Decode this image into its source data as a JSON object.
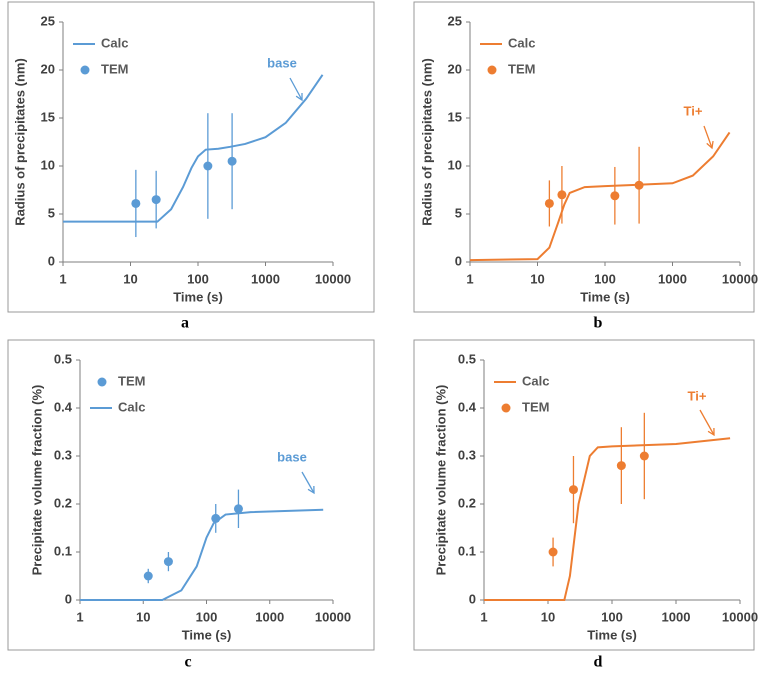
{
  "chart_data": [
    {
      "type": "line",
      "label": "a",
      "xlabel": "Time (s)",
      "ylabel": "Radius of precipitates (nm)",
      "xscale": "log",
      "xlim": [
        1,
        10000
      ],
      "xticks": [
        1,
        10,
        100,
        1000,
        10000
      ],
      "ylim": [
        0,
        25
      ],
      "yticks": [
        0,
        5,
        10,
        15,
        20,
        25
      ],
      "annotation": "base",
      "legend": "upper left",
      "series": [
        {
          "name": "Calc",
          "type": "line",
          "color": "#5b9bd5",
          "x": [
            1,
            10,
            25,
            40,
            60,
            80,
            100,
            130,
            200,
            300,
            500,
            1000,
            2000,
            4000,
            7000
          ],
          "values": [
            4.2,
            4.2,
            4.2,
            5.5,
            7.8,
            9.8,
            11,
            11.7,
            11.8,
            12,
            12.3,
            13,
            14.5,
            17,
            19.5
          ]
        },
        {
          "name": "TEM",
          "type": "scatter",
          "color": "#5b9bd5",
          "x": [
            12,
            24,
            140,
            320
          ],
          "values": [
            6.1,
            6.5,
            10,
            10.5
          ],
          "errors": [
            3.5,
            3,
            5.5,
            5
          ]
        }
      ]
    },
    {
      "type": "line",
      "label": "b",
      "xlabel": "Time (s)",
      "ylabel": "Radius of precipitates (nm)",
      "xscale": "log",
      "xlim": [
        1,
        10000
      ],
      "xticks": [
        1,
        10,
        100,
        1000,
        10000
      ],
      "ylim": [
        0,
        25
      ],
      "yticks": [
        0,
        5,
        10,
        15,
        20,
        25
      ],
      "annotation": "Ti+",
      "legend": "upper left",
      "series": [
        {
          "name": "Calc",
          "type": "line",
          "color": "#ed7d31",
          "x": [
            1,
            10,
            15,
            20,
            25,
            30,
            50,
            100,
            1000,
            2000,
            4000,
            7000
          ],
          "values": [
            0.2,
            0.3,
            1.5,
            4,
            6,
            7.2,
            7.8,
            7.9,
            8.2,
            9,
            11,
            13.5
          ]
        },
        {
          "name": "TEM",
          "type": "scatter",
          "color": "#ed7d31",
          "x": [
            15,
            23,
            140,
            320
          ],
          "values": [
            6.1,
            7,
            6.9,
            8
          ],
          "errors": [
            2.4,
            3,
            3,
            4
          ]
        }
      ]
    },
    {
      "type": "line",
      "label": "c",
      "xlabel": "Time (s)",
      "ylabel": "Precipitate volume fraction (%)",
      "xscale": "log",
      "xlim": [
        1,
        10000
      ],
      "xticks": [
        1,
        10,
        100,
        1000,
        10000
      ],
      "ylim": [
        0,
        0.5
      ],
      "yticks": [
        0,
        0.1,
        0.2,
        0.3,
        0.4,
        0.5
      ],
      "annotation": "base",
      "legend": "upper left",
      "series": [
        {
          "name": "TEM",
          "type": "scatter",
          "color": "#5b9bd5",
          "x": [
            12,
            25,
            140,
            320
          ],
          "values": [
            0.05,
            0.08,
            0.17,
            0.19
          ],
          "errors": [
            0.015,
            0.02,
            0.03,
            0.04
          ]
        },
        {
          "name": "Calc",
          "type": "line",
          "color": "#5b9bd5",
          "x": [
            1,
            20,
            40,
            70,
            100,
            130,
            200,
            500,
            7000
          ],
          "values": [
            0,
            0,
            0.02,
            0.07,
            0.13,
            0.16,
            0.178,
            0.183,
            0.188
          ]
        }
      ]
    },
    {
      "type": "line",
      "label": "d",
      "xlabel": "Time (s)",
      "ylabel": "Precipitate volume fraction (%)",
      "xscale": "log",
      "xlim": [
        1,
        10000
      ],
      "xticks": [
        1,
        10,
        100,
        1000,
        10000
      ],
      "ylim": [
        0,
        0.5
      ],
      "yticks": [
        0,
        0.1,
        0.2,
        0.3,
        0.4,
        0.5
      ],
      "annotation": "Ti+",
      "legend": "upper left",
      "series": [
        {
          "name": "Calc",
          "type": "line",
          "color": "#ed7d31",
          "x": [
            1,
            18,
            22,
            30,
            45,
            60,
            100,
            1000,
            7000
          ],
          "values": [
            0,
            0,
            0.05,
            0.2,
            0.3,
            0.318,
            0.32,
            0.325,
            0.337
          ]
        },
        {
          "name": "TEM",
          "type": "scatter",
          "color": "#ed7d31",
          "x": [
            12,
            25,
            140,
            320
          ],
          "values": [
            0.1,
            0.23,
            0.28,
            0.3
          ],
          "errors": [
            0.03,
            0.07,
            0.08,
            0.09
          ]
        }
      ]
    }
  ]
}
